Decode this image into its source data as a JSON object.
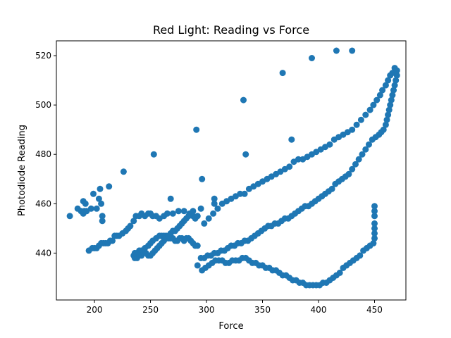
{
  "chart_data": {
    "type": "scatter",
    "title": "Red Light: Reading vs Force",
    "xlabel": "Force",
    "ylabel": "Photodiode Reading",
    "xlim": [
      166,
      478
    ],
    "ylim": [
      421,
      526
    ],
    "xticks": [
      200,
      250,
      300,
      350,
      400,
      450
    ],
    "yticks": [
      440,
      460,
      480,
      500,
      520
    ],
    "grid": false,
    "legend": "none",
    "marker_color": "#1f77b4",
    "series": [
      {
        "points": [
          [
            178,
            455
          ],
          [
            185,
            458
          ],
          [
            188,
            457
          ],
          [
            190,
            456
          ],
          [
            191,
            457
          ],
          [
            190,
            461
          ],
          [
            192,
            460
          ],
          [
            193,
            457
          ],
          [
            197,
            458
          ],
          [
            199,
            464
          ],
          [
            202,
            458
          ],
          [
            204,
            462
          ],
          [
            205,
            466
          ],
          [
            206,
            460
          ],
          [
            207,
            455
          ],
          [
            207,
            453
          ],
          [
            213,
            467
          ],
          [
            226,
            473
          ],
          [
            253,
            480
          ],
          [
            268,
            462
          ],
          [
            291,
            490
          ],
          [
            296,
            470
          ],
          [
            307,
            462
          ],
          [
            307,
            460
          ],
          [
            333,
            502
          ],
          [
            335,
            480
          ],
          [
            368,
            513
          ],
          [
            376,
            486
          ],
          [
            394,
            519
          ],
          [
            416,
            522
          ],
          [
            430,
            522
          ],
          [
            195,
            441
          ],
          [
            198,
            442
          ],
          [
            200,
            442
          ],
          [
            202,
            442
          ],
          [
            204,
            443
          ],
          [
            206,
            444
          ],
          [
            208,
            444
          ],
          [
            210,
            444
          ],
          [
            212,
            444
          ],
          [
            214,
            445
          ],
          [
            216,
            445
          ],
          [
            218,
            447
          ],
          [
            220,
            447
          ],
          [
            222,
            447
          ],
          [
            225,
            448
          ],
          [
            228,
            449
          ],
          [
            230,
            450
          ],
          [
            232,
            451
          ],
          [
            235,
            453
          ],
          [
            237,
            455
          ],
          [
            240,
            455
          ],
          [
            242,
            456
          ],
          [
            245,
            455
          ],
          [
            248,
            456
          ],
          [
            250,
            456
          ],
          [
            252,
            455
          ],
          [
            255,
            455
          ],
          [
            258,
            454
          ],
          [
            262,
            455
          ],
          [
            265,
            456
          ],
          [
            270,
            456
          ],
          [
            275,
            457
          ],
          [
            280,
            457
          ],
          [
            285,
            456
          ],
          [
            288,
            455
          ],
          [
            290,
            454
          ],
          [
            292,
            455
          ],
          [
            295,
            458
          ],
          [
            298,
            452
          ],
          [
            302,
            454
          ],
          [
            306,
            456
          ],
          [
            310,
            458
          ],
          [
            314,
            460
          ],
          [
            318,
            461
          ],
          [
            322,
            462
          ],
          [
            326,
            463
          ],
          [
            330,
            464
          ],
          [
            334,
            464
          ],
          [
            338,
            466
          ],
          [
            342,
            467
          ],
          [
            346,
            468
          ],
          [
            350,
            469
          ],
          [
            354,
            470
          ],
          [
            358,
            471
          ],
          [
            362,
            472
          ],
          [
            366,
            473
          ],
          [
            370,
            474
          ],
          [
            374,
            475
          ],
          [
            378,
            477
          ],
          [
            382,
            478
          ],
          [
            386,
            478
          ],
          [
            390,
            479
          ],
          [
            394,
            480
          ],
          [
            398,
            481
          ],
          [
            402,
            482
          ],
          [
            406,
            483
          ],
          [
            410,
            484
          ],
          [
            414,
            486
          ],
          [
            418,
            487
          ],
          [
            422,
            488
          ],
          [
            426,
            489
          ],
          [
            430,
            490
          ],
          [
            434,
            492
          ],
          [
            438,
            494
          ],
          [
            442,
            496
          ],
          [
            446,
            498
          ],
          [
            449,
            500
          ],
          [
            452,
            502
          ],
          [
            455,
            504
          ],
          [
            457,
            506
          ],
          [
            460,
            508
          ],
          [
            462,
            510
          ],
          [
            464,
            512
          ],
          [
            466,
            513
          ],
          [
            468,
            515
          ],
          [
            470,
            514
          ],
          [
            470,
            512
          ],
          [
            469,
            510
          ],
          [
            468,
            508
          ],
          [
            467,
            506
          ],
          [
            466,
            504
          ],
          [
            465,
            502
          ],
          [
            464,
            500
          ],
          [
            463,
            498
          ],
          [
            462,
            496
          ],
          [
            461,
            494
          ],
          [
            460,
            492
          ],
          [
            458,
            490
          ],
          [
            456,
            489
          ],
          [
            454,
            488
          ],
          [
            451,
            487
          ],
          [
            448,
            486
          ],
          [
            445,
            484
          ],
          [
            442,
            482
          ],
          [
            439,
            480
          ],
          [
            436,
            478
          ],
          [
            433,
            476
          ],
          [
            430,
            474
          ],
          [
            427,
            472
          ],
          [
            424,
            471
          ],
          [
            421,
            470
          ],
          [
            418,
            469
          ],
          [
            415,
            468
          ],
          [
            412,
            466
          ],
          [
            409,
            465
          ],
          [
            406,
            464
          ],
          [
            403,
            463
          ],
          [
            400,
            462
          ],
          [
            397,
            461
          ],
          [
            394,
            460
          ],
          [
            391,
            459
          ],
          [
            388,
            459
          ],
          [
            385,
            458
          ],
          [
            382,
            457
          ],
          [
            379,
            456
          ],
          [
            376,
            455
          ],
          [
            373,
            454
          ],
          [
            370,
            454
          ],
          [
            367,
            453
          ],
          [
            364,
            452
          ],
          [
            361,
            452
          ],
          [
            358,
            451
          ],
          [
            355,
            451
          ],
          [
            352,
            450
          ],
          [
            349,
            449
          ],
          [
            346,
            448
          ],
          [
            343,
            447
          ],
          [
            340,
            446
          ],
          [
            337,
            445
          ],
          [
            334,
            445
          ],
          [
            331,
            444
          ],
          [
            328,
            444
          ],
          [
            325,
            443
          ],
          [
            322,
            443
          ],
          [
            319,
            442
          ],
          [
            316,
            441
          ],
          [
            313,
            441
          ],
          [
            310,
            440
          ],
          [
            307,
            440
          ],
          [
            304,
            439
          ],
          [
            301,
            439
          ],
          [
            298,
            438
          ],
          [
            295,
            438
          ],
          [
            292,
            443
          ],
          [
            290,
            443
          ],
          [
            288,
            444
          ],
          [
            286,
            445
          ],
          [
            284,
            446
          ],
          [
            282,
            446
          ],
          [
            280,
            445
          ],
          [
            278,
            446
          ],
          [
            276,
            446
          ],
          [
            274,
            445
          ],
          [
            272,
            445
          ],
          [
            270,
            446
          ],
          [
            268,
            446
          ],
          [
            266,
            446
          ],
          [
            264,
            447
          ],
          [
            262,
            447
          ],
          [
            260,
            447
          ],
          [
            258,
            447
          ],
          [
            255,
            446
          ],
          [
            252,
            445
          ],
          [
            250,
            444
          ],
          [
            248,
            443
          ],
          [
            245,
            442
          ],
          [
            242,
            441
          ],
          [
            240,
            441
          ],
          [
            238,
            440
          ],
          [
            236,
            440
          ],
          [
            235,
            439
          ],
          [
            236,
            438
          ],
          [
            238,
            438
          ],
          [
            240,
            439
          ],
          [
            242,
            439
          ],
          [
            244,
            440
          ],
          [
            246,
            440
          ],
          [
            248,
            439
          ],
          [
            250,
            439
          ],
          [
            252,
            440
          ],
          [
            254,
            441
          ],
          [
            256,
            442
          ],
          [
            258,
            443
          ],
          [
            260,
            444
          ],
          [
            262,
            445
          ],
          [
            264,
            446
          ],
          [
            266,
            447
          ],
          [
            268,
            448
          ],
          [
            270,
            449
          ],
          [
            272,
            449
          ],
          [
            274,
            450
          ],
          [
            276,
            451
          ],
          [
            278,
            452
          ],
          [
            280,
            453
          ],
          [
            282,
            454
          ],
          [
            284,
            455
          ],
          [
            286,
            456
          ],
          [
            288,
            457
          ],
          [
            292,
            435
          ],
          [
            296,
            433
          ],
          [
            299,
            434
          ],
          [
            302,
            435
          ],
          [
            305,
            436
          ],
          [
            308,
            437
          ],
          [
            311,
            437
          ],
          [
            314,
            437
          ],
          [
            317,
            436
          ],
          [
            320,
            436
          ],
          [
            323,
            437
          ],
          [
            326,
            437
          ],
          [
            329,
            437
          ],
          [
            332,
            438
          ],
          [
            335,
            438
          ],
          [
            338,
            437
          ],
          [
            341,
            436
          ],
          [
            344,
            436
          ],
          [
            347,
            435
          ],
          [
            350,
            435
          ],
          [
            353,
            434
          ],
          [
            356,
            434
          ],
          [
            359,
            433
          ],
          [
            362,
            433
          ],
          [
            365,
            432
          ],
          [
            368,
            431
          ],
          [
            371,
            431
          ],
          [
            374,
            430
          ],
          [
            377,
            429
          ],
          [
            380,
            429
          ],
          [
            383,
            428
          ],
          [
            386,
            428
          ],
          [
            389,
            427
          ],
          [
            392,
            427
          ],
          [
            395,
            427
          ],
          [
            398,
            427
          ],
          [
            401,
            427
          ],
          [
            404,
            428
          ],
          [
            407,
            428
          ],
          [
            410,
            429
          ],
          [
            413,
            430
          ],
          [
            416,
            431
          ],
          [
            419,
            432
          ],
          [
            422,
            434
          ],
          [
            425,
            435
          ],
          [
            428,
            436
          ],
          [
            431,
            437
          ],
          [
            434,
            438
          ],
          [
            437,
            439
          ],
          [
            440,
            441
          ],
          [
            443,
            442
          ],
          [
            446,
            443
          ],
          [
            449,
            444
          ],
          [
            450,
            446
          ],
          [
            450,
            448
          ],
          [
            450,
            450
          ],
          [
            450,
            452
          ],
          [
            450,
            455
          ],
          [
            450,
            457
          ],
          [
            450,
            459
          ]
        ]
      }
    ]
  }
}
